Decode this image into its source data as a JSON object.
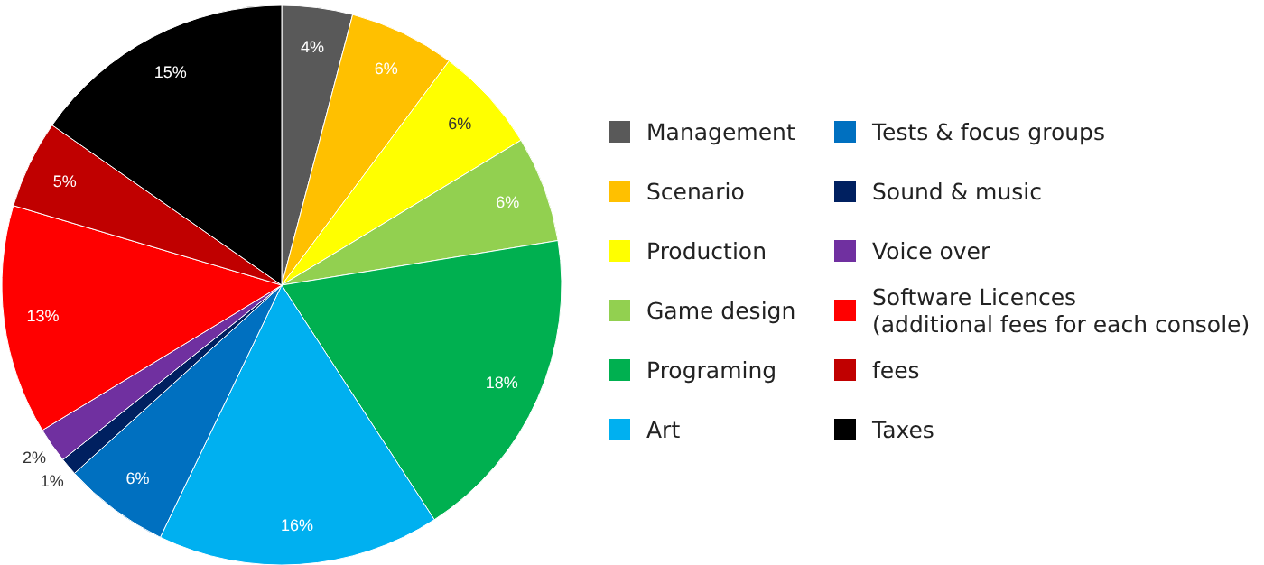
{
  "chart_data": {
    "type": "pie",
    "categories": [
      "Management",
      "Scenario",
      "Production",
      "Game design",
      "Programing",
      "Art",
      "Tests & focus groups",
      "Sound & music",
      "Voice over",
      "Software Licences\n(additional fees for each console)",
      "fees",
      "Taxes"
    ],
    "values": [
      4,
      6,
      6,
      6,
      18,
      16,
      6,
      1,
      2,
      13,
      5,
      15
    ],
    "colors": [
      "#595959",
      "#ffc000",
      "#ffff00",
      "#92d050",
      "#00b050",
      "#00b0f0",
      "#0070c0",
      "#002060",
      "#7030a0",
      "#ff0000",
      "#c00000",
      "#000000"
    ],
    "value_labels": [
      "4%",
      "6%",
      "6%",
      "6%",
      "18%",
      "16%",
      "6%",
      "1%",
      "2%",
      "13%",
      "5%",
      "15%"
    ],
    "legend": "right"
  }
}
